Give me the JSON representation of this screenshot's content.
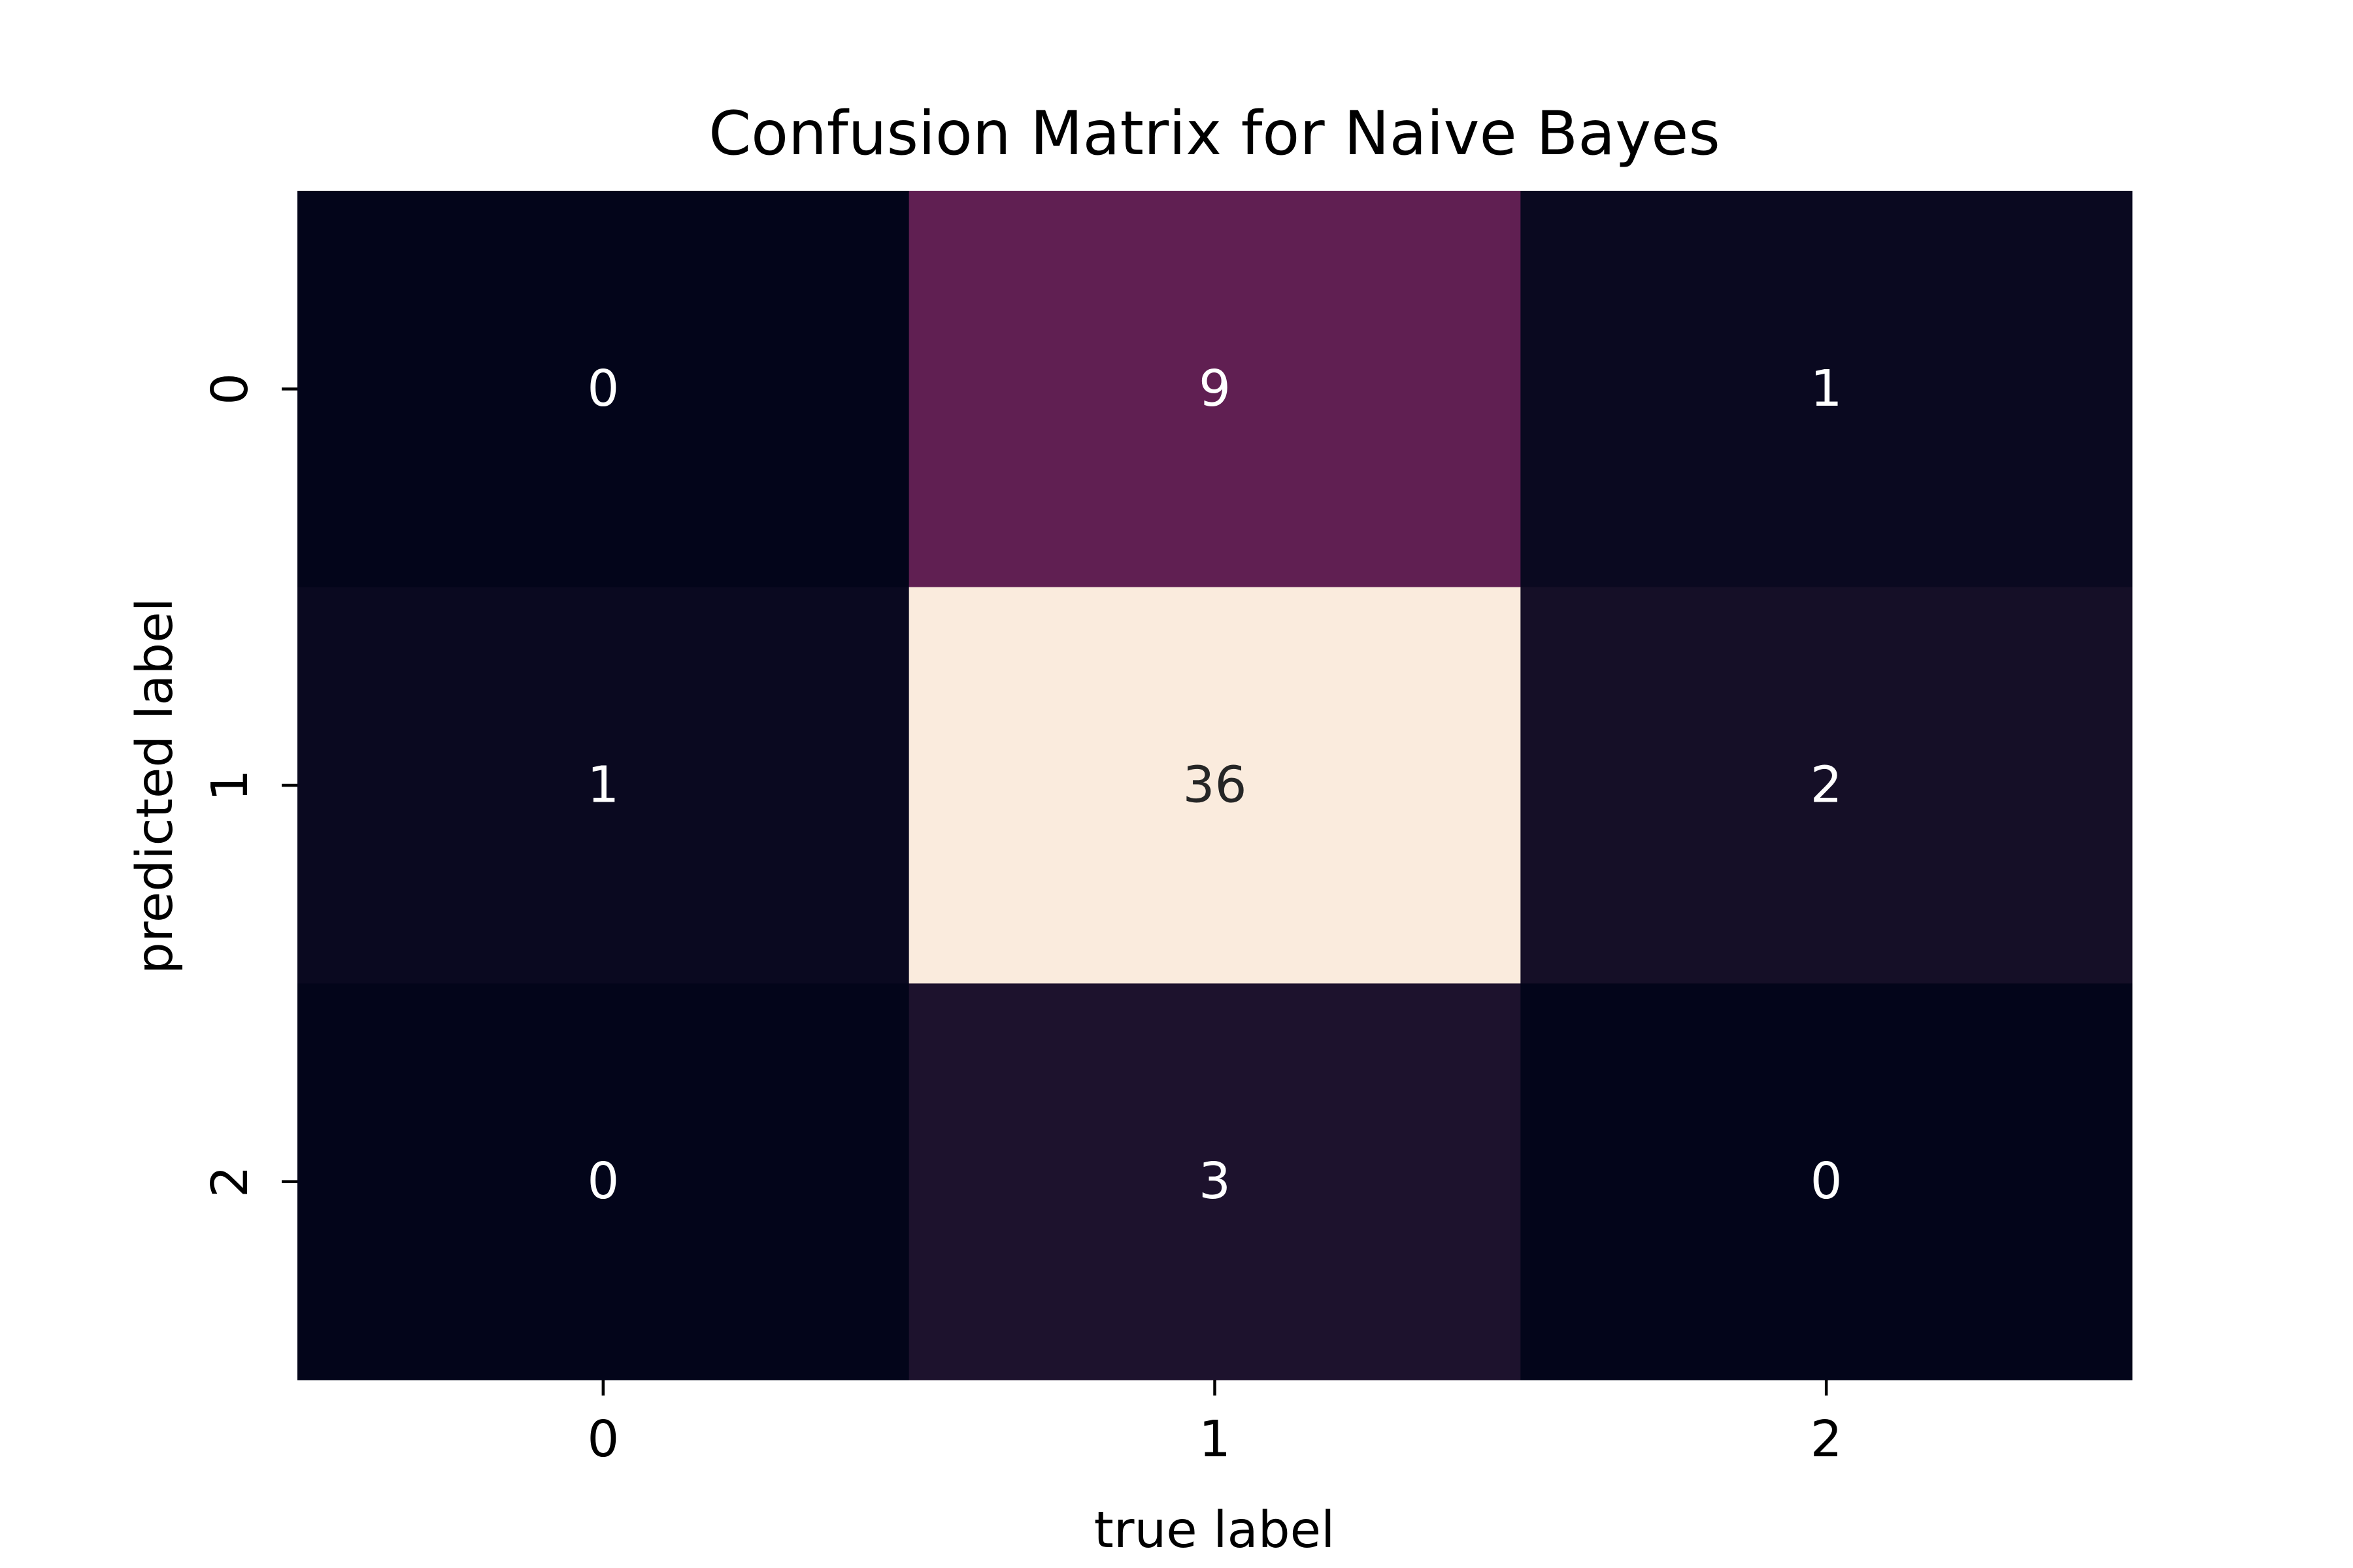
{
  "chart_data": {
    "type": "heatmap",
    "title": "Confusion Matrix for Naive Bayes",
    "xlabel": "true label",
    "ylabel": "predicted label",
    "x_categories": [
      "0",
      "1",
      "2"
    ],
    "y_categories": [
      "0",
      "1",
      "2"
    ],
    "values": [
      [
        0,
        9,
        1
      ],
      [
        1,
        36,
        2
      ],
      [
        0,
        3,
        0
      ]
    ],
    "colormap": "rocket",
    "vmin": 0,
    "vmax": 36,
    "colorbar": false,
    "annotations": true
  }
}
